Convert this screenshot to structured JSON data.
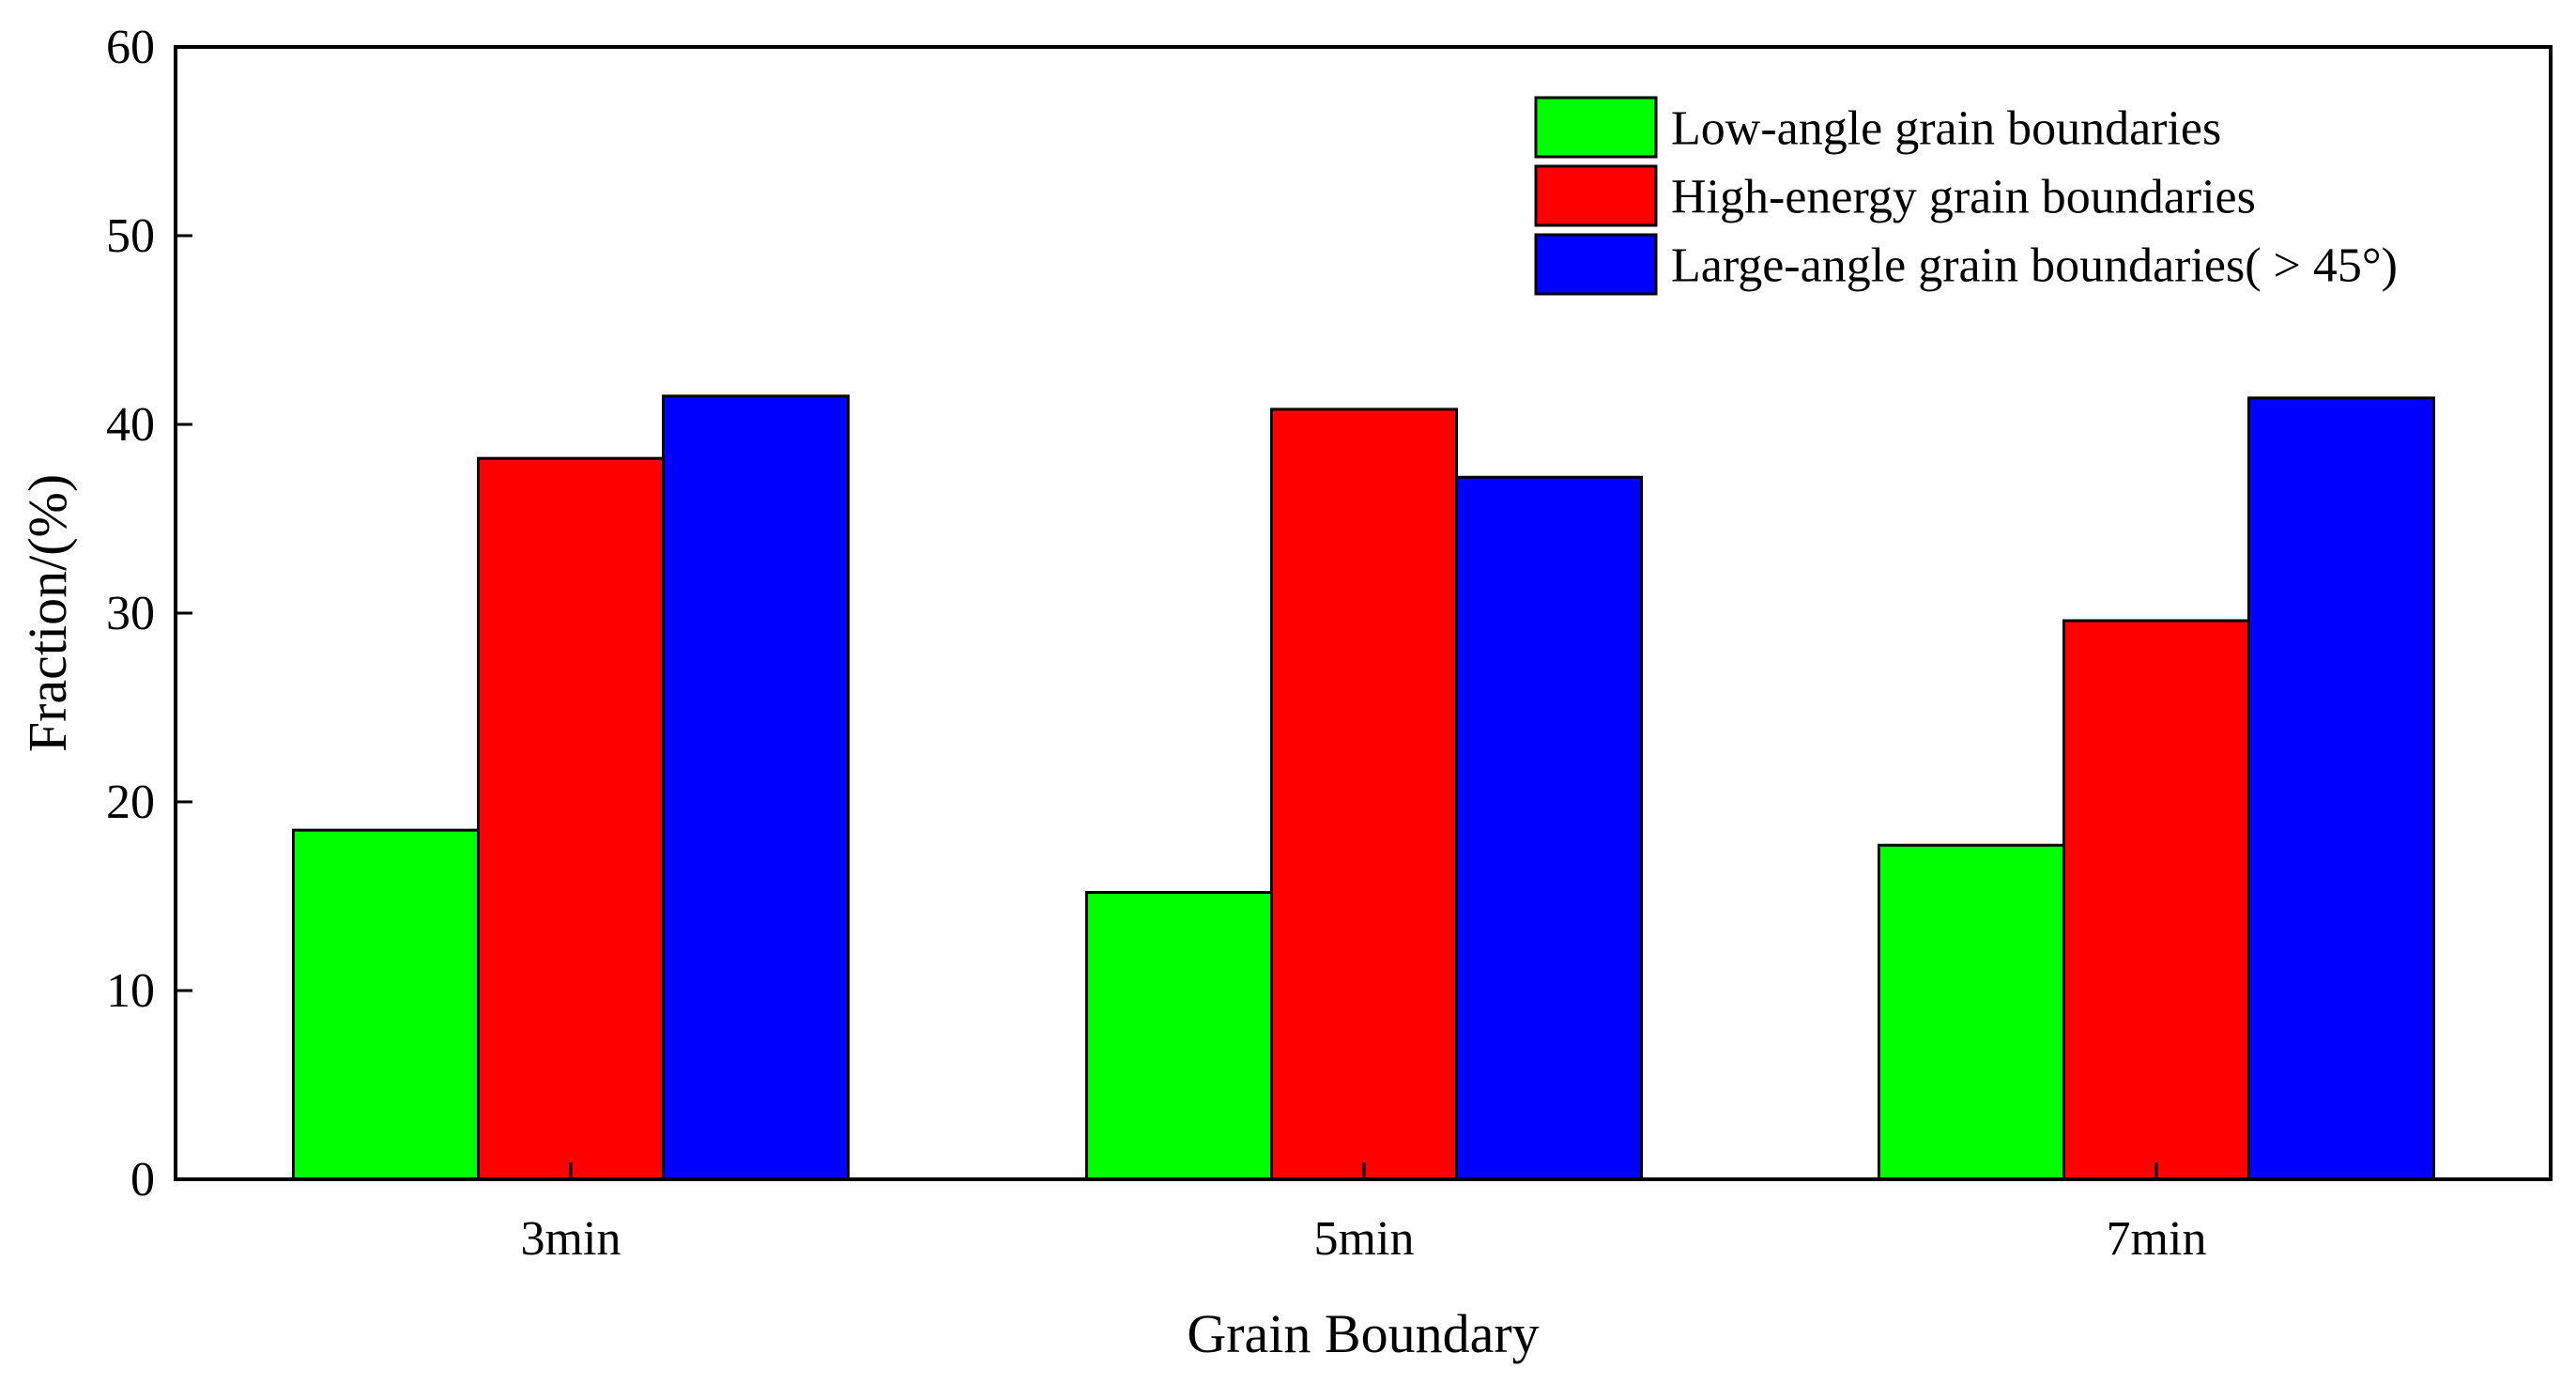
{
  "chart_data": {
    "type": "bar",
    "title": "",
    "xlabel": "Grain Boundary",
    "ylabel": "Fraction/(%)",
    "ylim": [
      0,
      60
    ],
    "yticks": [
      0,
      10,
      20,
      30,
      40,
      50,
      60
    ],
    "grid": false,
    "legend_position": "top-right",
    "categories": [
      "3min",
      "5min",
      "7min"
    ],
    "series": [
      {
        "name": "Low-angle grain boundaries",
        "color": "#00ff00",
        "values": [
          18.5,
          15.2,
          17.7
        ]
      },
      {
        "name": "High-energy grain boundaries",
        "color": "#ff0000",
        "values": [
          38.2,
          40.8,
          29.6
        ]
      },
      {
        "name": "Large-angle grain boundaries( > 45°)",
        "color": "#0000ff",
        "values": [
          41.5,
          37.2,
          41.4
        ]
      }
    ]
  }
}
